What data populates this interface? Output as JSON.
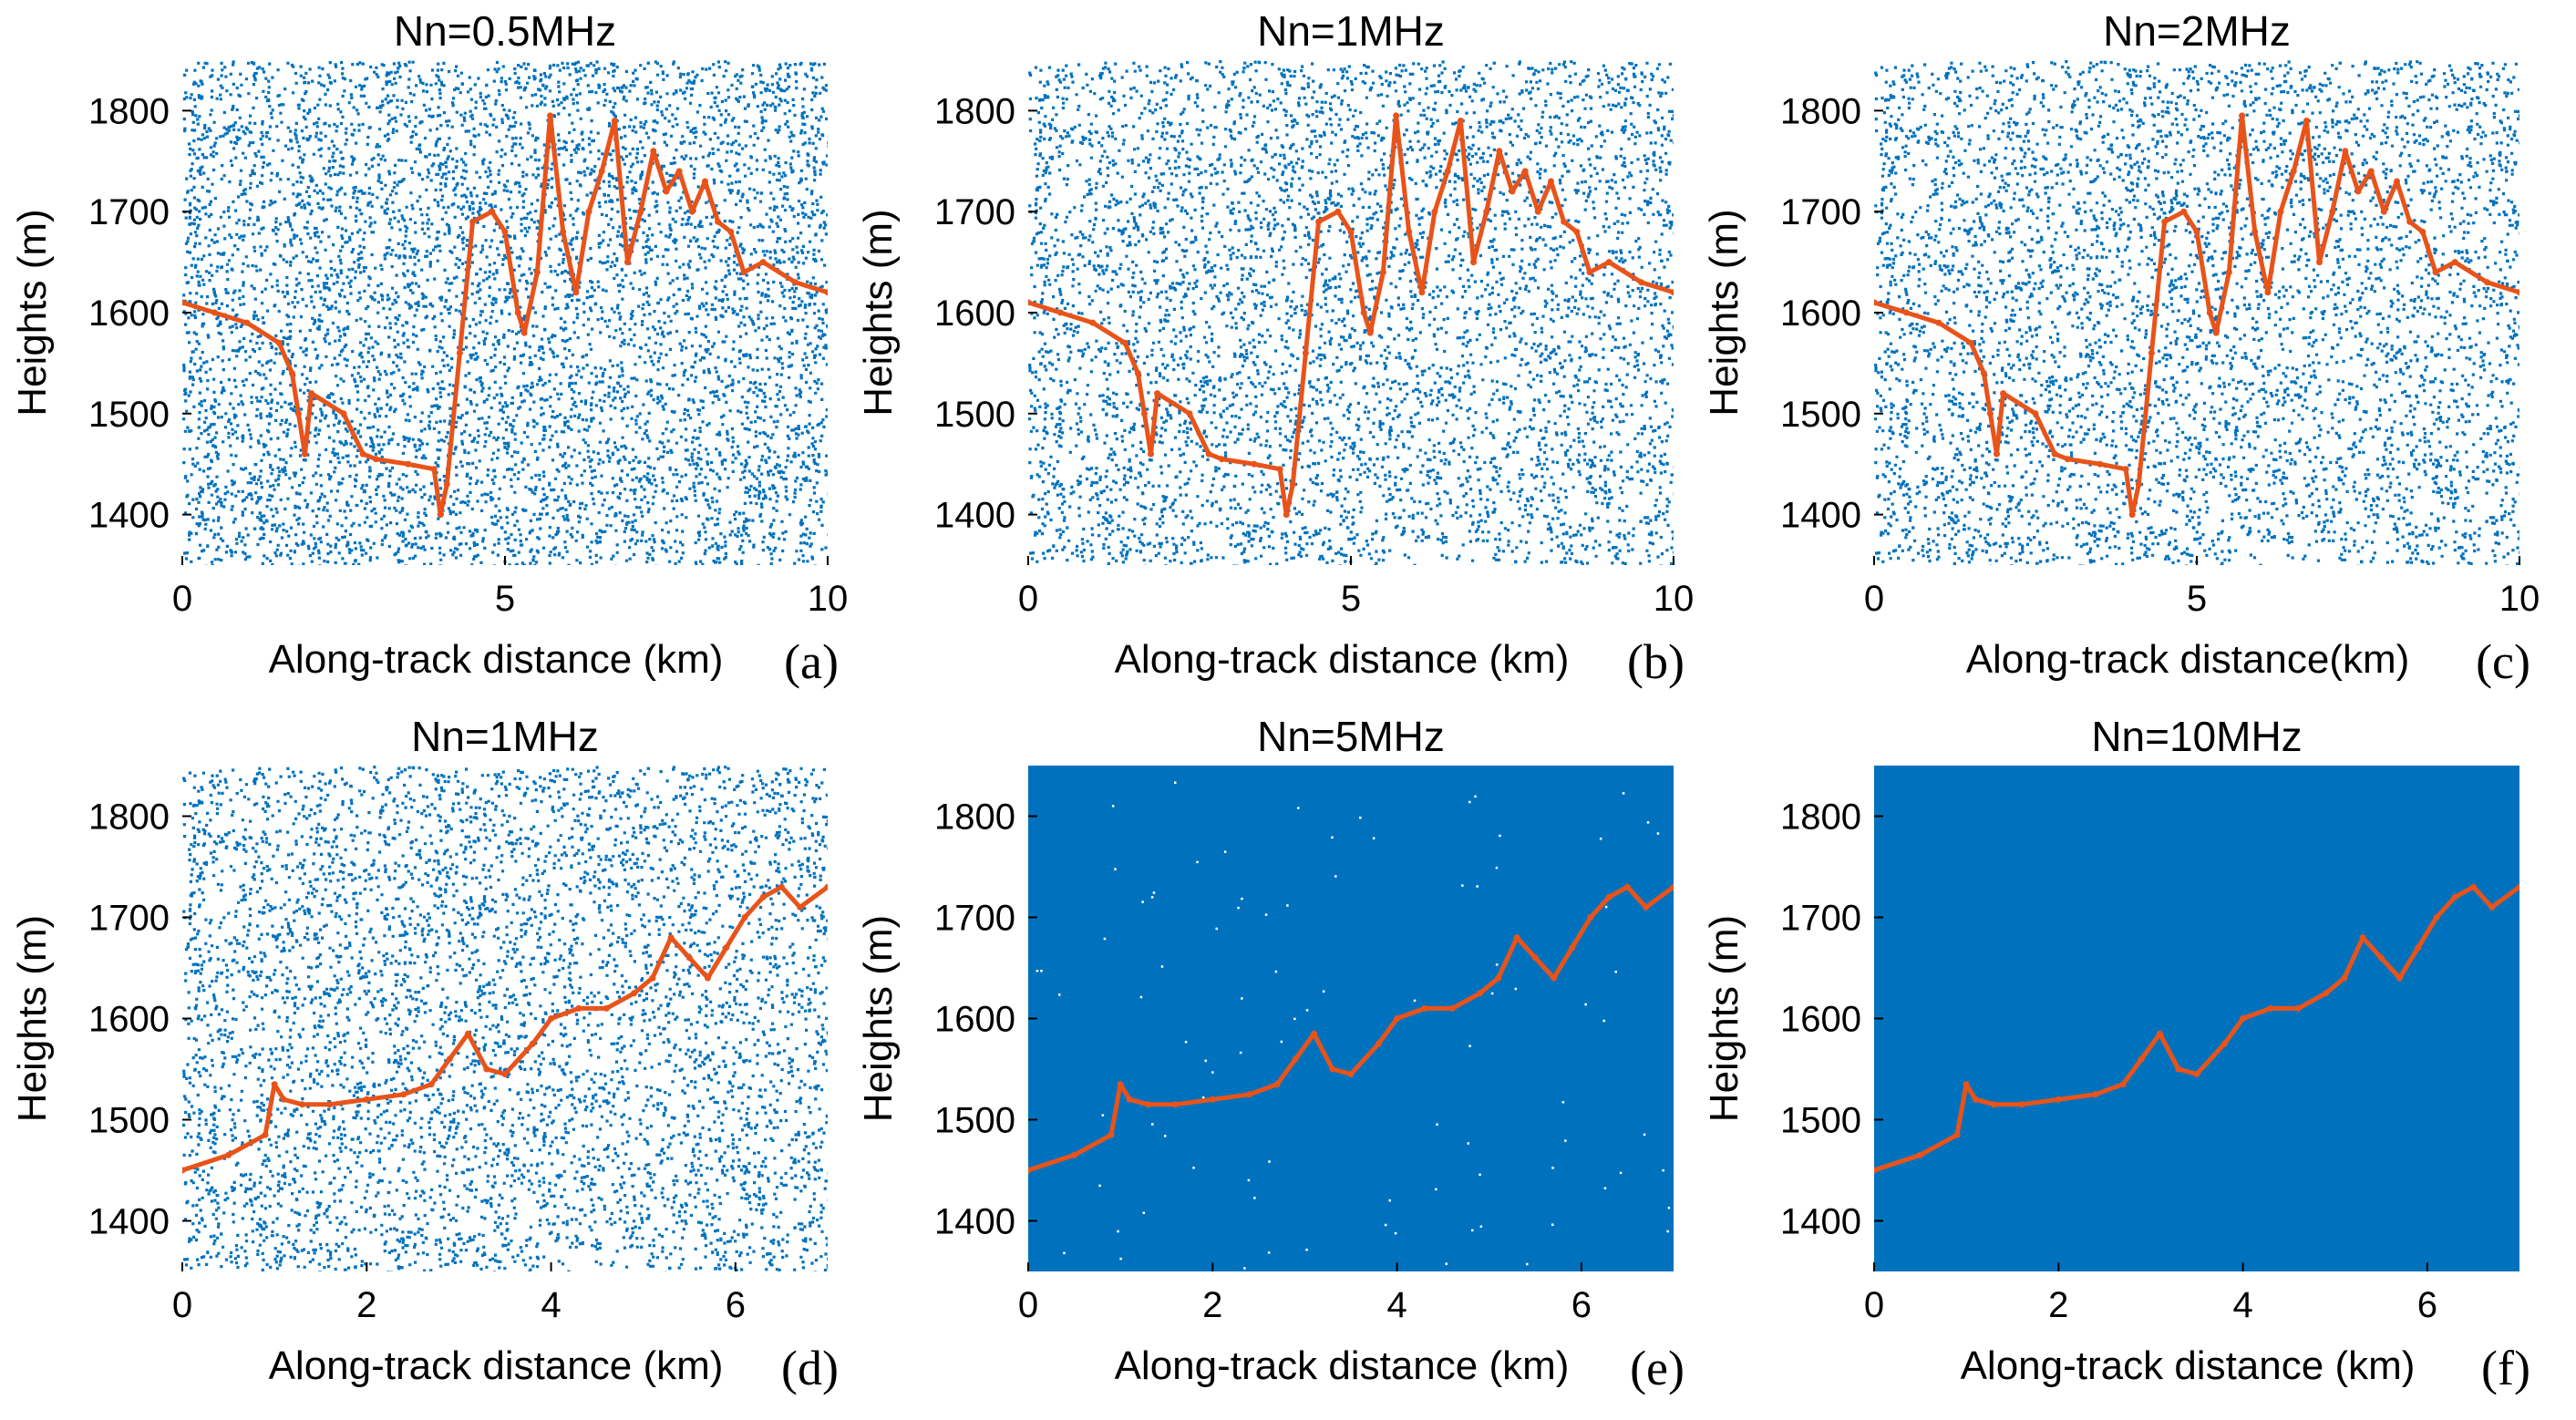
{
  "colors": {
    "noise": "#0072BD",
    "signal": "#E8531A"
  },
  "chart_data": [
    {
      "type": "scatter",
      "panel_label": "(a)",
      "title": "Nn=0.5MHz",
      "xlabel": "Along-track distance (km)",
      "ylabel": "Heights (m)",
      "xlim": [
        0,
        10
      ],
      "ylim": [
        1350,
        1850
      ],
      "xticks": [
        0,
        5,
        10
      ],
      "xtick_labels": [
        "0",
        "5",
        "10"
      ],
      "yticks": [
        1400,
        1500,
        1600,
        1700,
        1800
      ],
      "ytick_labels": [
        "1400",
        "1500",
        "1600",
        "1700",
        "1800"
      ],
      "noise_density": 0.25,
      "series": [
        {
          "name": "noise photons",
          "kind": "random-background"
        },
        {
          "name": "signal photons",
          "x": [
            0,
            0.5,
            1,
            1.5,
            1.7,
            1.8,
            1.9,
            2,
            2.5,
            2.8,
            3,
            3.5,
            3.9,
            4,
            4.1,
            4.3,
            4.5,
            4.8,
            5,
            5.2,
            5.3,
            5.5,
            5.7,
            5.9,
            6.1,
            6.3,
            6.5,
            6.7,
            6.9,
            7.1,
            7.3,
            7.5,
            7.7,
            7.9,
            8.1,
            8.3,
            8.5,
            8.7,
            9,
            9.5,
            10
          ],
          "y": [
            1610,
            1600,
            1590,
            1570,
            1540,
            1500,
            1460,
            1520,
            1500,
            1460,
            1455,
            1450,
            1445,
            1400,
            1430,
            1560,
            1690,
            1700,
            1680,
            1600,
            1580,
            1640,
            1795,
            1680,
            1620,
            1700,
            1740,
            1790,
            1650,
            1700,
            1760,
            1720,
            1740,
            1700,
            1730,
            1690,
            1680,
            1640,
            1650,
            1630,
            1620
          ]
        }
      ]
    },
    {
      "type": "scatter",
      "panel_label": "(b)",
      "title": "Nn=1MHz",
      "xlabel": "Along-track distance (km)",
      "ylabel": "Heights (m)",
      "xlim": [
        0,
        10
      ],
      "ylim": [
        1350,
        1850
      ],
      "xticks": [
        0,
        5,
        10
      ],
      "xtick_labels": [
        "0",
        "5",
        "10"
      ],
      "yticks": [
        1400,
        1500,
        1600,
        1700,
        1800
      ],
      "ytick_labels": [
        "1400",
        "1500",
        "1600",
        "1700",
        "1800"
      ],
      "noise_density": 0.5,
      "series": [
        {
          "name": "noise photons",
          "kind": "random-background"
        },
        {
          "name": "signal photons",
          "x": [
            0,
            0.5,
            1,
            1.5,
            1.7,
            1.8,
            1.9,
            2,
            2.5,
            2.8,
            3,
            3.5,
            3.9,
            4,
            4.1,
            4.3,
            4.5,
            4.8,
            5,
            5.2,
            5.3,
            5.5,
            5.7,
            5.9,
            6.1,
            6.3,
            6.5,
            6.7,
            6.9,
            7.1,
            7.3,
            7.5,
            7.7,
            7.9,
            8.1,
            8.3,
            8.5,
            8.7,
            9,
            9.5,
            10
          ],
          "y": [
            1610,
            1600,
            1590,
            1570,
            1540,
            1500,
            1460,
            1520,
            1500,
            1460,
            1455,
            1450,
            1445,
            1400,
            1430,
            1560,
            1690,
            1700,
            1680,
            1600,
            1580,
            1640,
            1795,
            1680,
            1620,
            1700,
            1740,
            1790,
            1650,
            1700,
            1760,
            1720,
            1740,
            1700,
            1730,
            1690,
            1680,
            1640,
            1650,
            1630,
            1620
          ]
        }
      ]
    },
    {
      "type": "scatter",
      "panel_label": "(c)",
      "title": "Nn=2MHz",
      "xlabel": "Along-track distance(km)",
      "ylabel": "Heights (m)",
      "xlim": [
        0,
        10
      ],
      "ylim": [
        1350,
        1850
      ],
      "xticks": [
        0,
        5,
        10
      ],
      "xtick_labels": [
        "0",
        "5",
        "10"
      ],
      "yticks": [
        1400,
        1500,
        1600,
        1700,
        1800
      ],
      "ytick_labels": [
        "1400",
        "1500",
        "1600",
        "1700",
        "1800"
      ],
      "noise_density": 0.8,
      "series": [
        {
          "name": "noise photons",
          "kind": "random-background"
        },
        {
          "name": "signal photons",
          "x": [
            0,
            0.5,
            1,
            1.5,
            1.7,
            1.8,
            1.9,
            2,
            2.5,
            2.8,
            3,
            3.5,
            3.9,
            4,
            4.1,
            4.3,
            4.5,
            4.8,
            5,
            5.2,
            5.3,
            5.5,
            5.7,
            5.9,
            6.1,
            6.3,
            6.5,
            6.7,
            6.9,
            7.1,
            7.3,
            7.5,
            7.7,
            7.9,
            8.1,
            8.3,
            8.5,
            8.7,
            9,
            9.5,
            10
          ],
          "y": [
            1610,
            1600,
            1590,
            1570,
            1540,
            1500,
            1460,
            1520,
            1500,
            1460,
            1455,
            1450,
            1445,
            1400,
            1430,
            1560,
            1690,
            1700,
            1680,
            1600,
            1580,
            1640,
            1795,
            1680,
            1620,
            1700,
            1740,
            1790,
            1650,
            1700,
            1760,
            1720,
            1740,
            1700,
            1730,
            1690,
            1680,
            1640,
            1650,
            1630,
            1620
          ]
        }
      ]
    },
    {
      "type": "scatter",
      "panel_label": "(d)",
      "title": "Nn=1MHz",
      "xlabel": "Along-track distance (km)",
      "ylabel": "Heights (m)",
      "xlim": [
        0,
        7
      ],
      "ylim": [
        1350,
        1850
      ],
      "xticks": [
        0,
        2,
        4,
        6
      ],
      "xtick_labels": [
        "0",
        "2",
        "4",
        "6"
      ],
      "yticks": [
        1400,
        1500,
        1600,
        1700,
        1800
      ],
      "ytick_labels": [
        "1400",
        "1500",
        "1600",
        "1700",
        "1800"
      ],
      "noise_density": 0.5,
      "series": [
        {
          "name": "noise photons",
          "kind": "random-background"
        },
        {
          "name": "signal photons",
          "x": [
            0,
            0.5,
            0.9,
            1,
            1.1,
            1.3,
            1.6,
            2,
            2.4,
            2.7,
            2.9,
            3.1,
            3.3,
            3.5,
            3.8,
            4,
            4.3,
            4.6,
            4.9,
            5.1,
            5.3,
            5.5,
            5.7,
            5.9,
            6.1,
            6.3,
            6.5,
            6.7,
            7
          ],
          "y": [
            1450,
            1465,
            1485,
            1535,
            1520,
            1515,
            1515,
            1520,
            1525,
            1535,
            1560,
            1585,
            1550,
            1545,
            1575,
            1600,
            1610,
            1610,
            1625,
            1640,
            1680,
            1660,
            1640,
            1670,
            1700,
            1720,
            1730,
            1710,
            1730
          ]
        }
      ]
    },
    {
      "type": "scatter",
      "panel_label": "(e)",
      "title": "Nn=5MHz",
      "xlabel": "Along-track distance (km)",
      "ylabel": "Heights (m)",
      "xlim": [
        0,
        7
      ],
      "ylim": [
        1350,
        1850
      ],
      "xticks": [
        0,
        2,
        4,
        6
      ],
      "xtick_labels": [
        "0",
        "2",
        "4",
        "6"
      ],
      "yticks": [
        1400,
        1500,
        1600,
        1700,
        1800
      ],
      "ytick_labels": [
        "1400",
        "1500",
        "1600",
        "1700",
        "1800"
      ],
      "noise_density": 0.97,
      "series": [
        {
          "name": "noise photons",
          "kind": "random-background"
        },
        {
          "name": "signal photons",
          "x": [
            0,
            0.5,
            0.9,
            1,
            1.1,
            1.3,
            1.6,
            2,
            2.4,
            2.7,
            2.9,
            3.1,
            3.3,
            3.5,
            3.8,
            4,
            4.3,
            4.6,
            4.9,
            5.1,
            5.3,
            5.5,
            5.7,
            5.9,
            6.1,
            6.3,
            6.5,
            6.7,
            7
          ],
          "y": [
            1450,
            1465,
            1485,
            1535,
            1520,
            1515,
            1515,
            1520,
            1525,
            1535,
            1560,
            1585,
            1550,
            1545,
            1575,
            1600,
            1610,
            1610,
            1625,
            1640,
            1680,
            1660,
            1640,
            1670,
            1700,
            1720,
            1730,
            1710,
            1730
          ]
        }
      ]
    },
    {
      "type": "scatter",
      "panel_label": "(f)",
      "title": "Nn=10MHz",
      "xlabel": "Along-track distance (km)",
      "ylabel": "Heights (m)",
      "xlim": [
        0,
        7
      ],
      "ylim": [
        1350,
        1850
      ],
      "xticks": [
        0,
        2,
        4,
        6
      ],
      "xtick_labels": [
        "0",
        "2",
        "4",
        "6"
      ],
      "yticks": [
        1400,
        1500,
        1600,
        1700,
        1800
      ],
      "ytick_labels": [
        "1400",
        "1500",
        "1600",
        "1700",
        "1800"
      ],
      "noise_density": 1.0,
      "series": [
        {
          "name": "noise photons",
          "kind": "random-background"
        },
        {
          "name": "signal photons",
          "x": [
            0,
            0.5,
            0.9,
            1,
            1.1,
            1.3,
            1.6,
            2,
            2.4,
            2.7,
            2.9,
            3.1,
            3.3,
            3.5,
            3.8,
            4,
            4.3,
            4.6,
            4.9,
            5.1,
            5.3,
            5.5,
            5.7,
            5.9,
            6.1,
            6.3,
            6.5,
            6.7,
            7
          ],
          "y": [
            1450,
            1465,
            1485,
            1535,
            1520,
            1515,
            1515,
            1520,
            1525,
            1535,
            1560,
            1585,
            1550,
            1545,
            1575,
            1600,
            1610,
            1610,
            1625,
            1640,
            1680,
            1660,
            1640,
            1670,
            1700,
            1720,
            1730,
            1710,
            1730
          ]
        }
      ]
    }
  ]
}
